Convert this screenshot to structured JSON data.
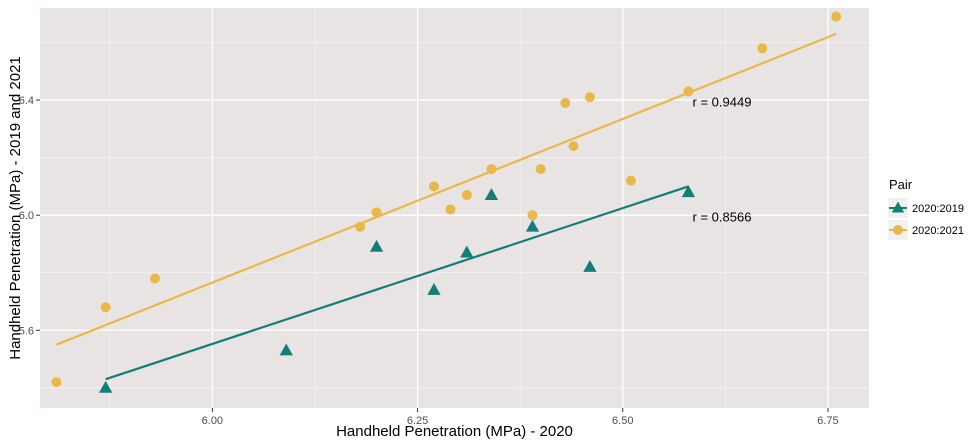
{
  "chart_data": {
    "type": "scatter",
    "title": "",
    "xlabel": "Handheld Penetration (MPa) - 2020",
    "ylabel": "Handheld Penetration (MPa) - 2019 and 2021",
    "xlim": [
      5.79,
      6.8
    ],
    "ylim": [
      5.33,
      6.72
    ],
    "xticks": [
      6.0,
      6.25,
      6.5,
      6.75
    ],
    "xtick_labels": [
      "6.00",
      "6.25",
      "6.50",
      "6.75"
    ],
    "yticks": [
      5.6,
      6.0,
      6.4
    ],
    "ytick_labels": [
      "5.6",
      "6.0",
      "6.4"
    ],
    "grid": true,
    "legend": {
      "title": "Pair",
      "position": "right"
    },
    "series": [
      {
        "name": "2020:2019",
        "marker": "triangle",
        "color": "#137e76",
        "points": [
          [
            5.87,
            5.4
          ],
          [
            6.09,
            5.53
          ],
          [
            6.2,
            5.89
          ],
          [
            6.27,
            5.74
          ],
          [
            6.31,
            5.87
          ],
          [
            6.34,
            6.07
          ],
          [
            6.39,
            5.96
          ],
          [
            6.46,
            5.82
          ],
          [
            6.58,
            6.08
          ]
        ],
        "fit_line": [
          [
            5.87,
            5.43
          ],
          [
            6.58,
            6.1
          ]
        ],
        "annotation": {
          "text": "r = 0.8566",
          "x": 6.585,
          "y": 5.995
        }
      },
      {
        "name": "2020:2021",
        "marker": "circle",
        "color": "#e8b84a",
        "points": [
          [
            5.81,
            5.42
          ],
          [
            5.87,
            5.68
          ],
          [
            5.93,
            5.78
          ],
          [
            6.18,
            5.96
          ],
          [
            6.2,
            6.01
          ],
          [
            6.27,
            6.1
          ],
          [
            6.29,
            6.02
          ],
          [
            6.31,
            6.07
          ],
          [
            6.34,
            6.16
          ],
          [
            6.39,
            6.0
          ],
          [
            6.4,
            6.16
          ],
          [
            6.43,
            6.39
          ],
          [
            6.44,
            6.24
          ],
          [
            6.46,
            6.41
          ],
          [
            6.51,
            6.12
          ],
          [
            6.58,
            6.43
          ],
          [
            6.67,
            6.58
          ],
          [
            6.76,
            6.69
          ]
        ],
        "fit_line": [
          [
            5.81,
            5.55
          ],
          [
            6.76,
            6.63
          ]
        ],
        "annotation": {
          "text": "r = 0.9449",
          "x": 6.585,
          "y": 6.395
        }
      }
    ]
  }
}
